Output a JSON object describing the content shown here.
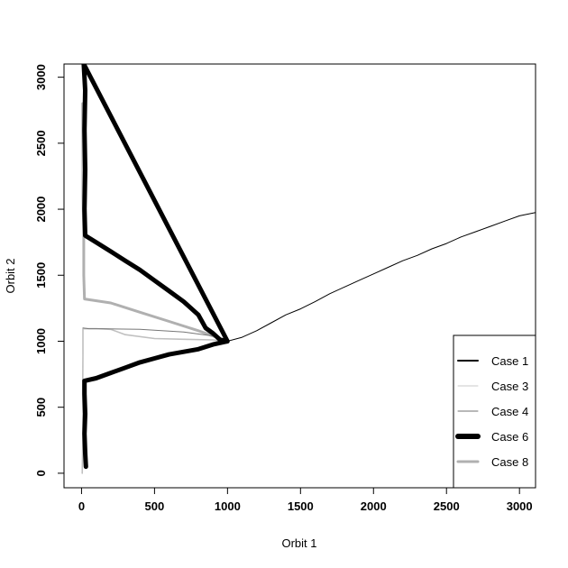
{
  "chart_data": {
    "type": "line",
    "title": "",
    "xlabel": "Orbit 1",
    "ylabel": "Orbit 2",
    "xlim": [
      -120,
      3110
    ],
    "ylim": [
      -110,
      3100
    ],
    "xticks": [
      0,
      500,
      1000,
      1500,
      2000,
      2500,
      3000
    ],
    "yticks": [
      0,
      500,
      1000,
      1500,
      2000,
      2500,
      3000
    ],
    "grid": false,
    "legend_position": "bottom-right",
    "series": [
      {
        "name": "Case 1",
        "color": "#000000",
        "points": [
          [
            1000,
            1000
          ],
          [
            1100,
            1030
          ],
          [
            1200,
            1080
          ],
          [
            1300,
            1140
          ],
          [
            1400,
            1200
          ],
          [
            1500,
            1245
          ],
          [
            1600,
            1300
          ],
          [
            1700,
            1360
          ],
          [
            1800,
            1410
          ],
          [
            1900,
            1460
          ],
          [
            2000,
            1510
          ],
          [
            2100,
            1560
          ],
          [
            2200,
            1610
          ],
          [
            2300,
            1650
          ],
          [
            2400,
            1700
          ],
          [
            2500,
            1740
          ],
          [
            2600,
            1790
          ],
          [
            2700,
            1830
          ],
          [
            2800,
            1870
          ],
          [
            2900,
            1910
          ],
          [
            3000,
            1950
          ],
          [
            3110,
            1975
          ]
        ]
      },
      {
        "name": "Case 3",
        "color": "#c0c0c0",
        "points": [
          [
            980,
            1000
          ],
          [
            900,
            1010
          ],
          [
            700,
            1015
          ],
          [
            500,
            1020
          ],
          [
            300,
            1050
          ],
          [
            200,
            1090
          ],
          [
            100,
            1095
          ],
          [
            10,
            1095
          ],
          [
            10,
            900
          ],
          [
            8,
            600
          ],
          [
            10,
            300
          ],
          [
            5,
            0
          ]
        ]
      },
      {
        "name": "Case 4",
        "color": "#777777",
        "points": [
          [
            1000,
            1000
          ],
          [
            900,
            1040
          ],
          [
            700,
            1070
          ],
          [
            400,
            1090
          ],
          [
            150,
            1095
          ],
          [
            50,
            1095
          ],
          [
            10,
            1100
          ]
        ]
      },
      {
        "name": "Case 6",
        "color": "#000000",
        "points": [
          [
            1000,
            1000
          ],
          [
            950,
            1010
          ],
          [
            900,
            1060
          ],
          [
            850,
            1100
          ],
          [
            800,
            1200
          ],
          [
            700,
            1300
          ],
          [
            600,
            1380
          ],
          [
            500,
            1460
          ],
          [
            400,
            1540
          ],
          [
            300,
            1610
          ],
          [
            200,
            1680
          ],
          [
            100,
            1750
          ],
          [
            25,
            1800
          ],
          [
            20,
            2000
          ],
          [
            25,
            2300
          ],
          [
            20,
            2600
          ],
          [
            25,
            2900
          ],
          [
            15,
            3100
          ],
          [
            1000,
            1000
          ],
          [
            900,
            975
          ],
          [
            800,
            940
          ],
          [
            700,
            920
          ],
          [
            600,
            900
          ],
          [
            500,
            870
          ],
          [
            400,
            840
          ],
          [
            300,
            800
          ],
          [
            200,
            760
          ],
          [
            100,
            720
          ],
          [
            20,
            700
          ],
          [
            20,
            600
          ],
          [
            25,
            450
          ],
          [
            20,
            300
          ],
          [
            25,
            150
          ],
          [
            30,
            50
          ]
        ]
      },
      {
        "name": "Case 8",
        "color": "#b0b0b0",
        "points": [
          [
            1000,
            1000
          ],
          [
            950,
            1020
          ],
          [
            800,
            1080
          ],
          [
            600,
            1150
          ],
          [
            400,
            1220
          ],
          [
            200,
            1290
          ],
          [
            20,
            1320
          ],
          [
            15,
            1500
          ],
          [
            15,
            1800
          ],
          [
            10,
            2100
          ],
          [
            10,
            2400
          ],
          [
            8,
            2800
          ]
        ]
      }
    ]
  },
  "legend": [
    {
      "label": "Case 1",
      "color": "#000000",
      "width": 2
    },
    {
      "label": "Case 3",
      "color": "#c8c8c8",
      "width": 1
    },
    {
      "label": "Case 4",
      "color": "#707070",
      "width": 1
    },
    {
      "label": "Case 6",
      "color": "#000000",
      "width": 6
    },
    {
      "label": "Case 8",
      "color": "#b0b0b0",
      "width": 3
    }
  ]
}
